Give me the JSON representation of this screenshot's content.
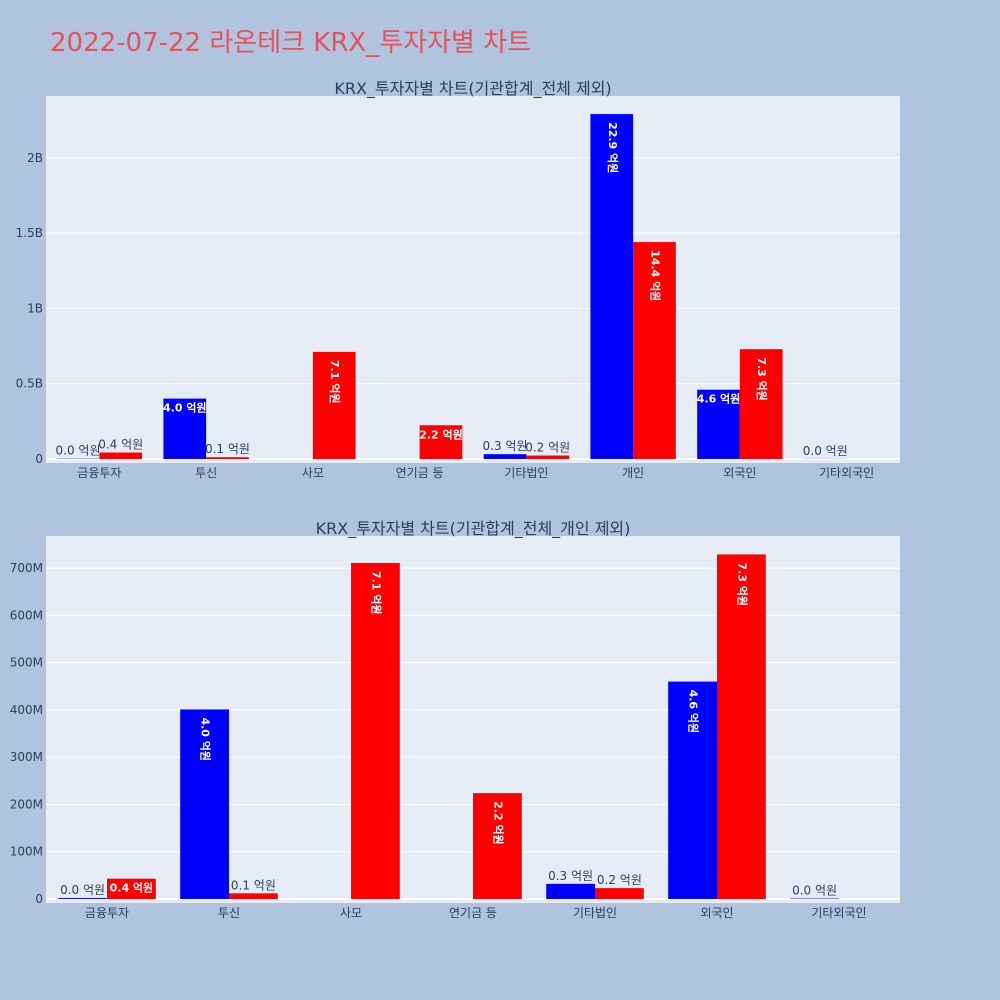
{
  "title": "2022-07-22 라온테크 KRX_투자자별 차트",
  "colors": {
    "buy": "#0000ff",
    "sell": "#ff0000",
    "plot_bg": "#e5ecf6",
    "page_bg": "#b0c4de",
    "title": "#e8505b"
  },
  "chart_data": [
    {
      "type": "bar",
      "title": "KRX_투자자별 차트(기관합계_전체 제외)",
      "categories": [
        "금융투자",
        "투신",
        "사모",
        "연기금 등",
        "기타법인",
        "개인",
        "외국인",
        "기타외국인"
      ],
      "series": [
        {
          "values": [
            2000000,
            401000000,
            null,
            null,
            32000000,
            2290000000,
            460000000,
            1000000
          ],
          "labels": [
            "0.0 억원",
            "4.0 억원",
            "",
            "",
            "0.3 억원",
            "22.9 억원",
            "4.6 억원",
            "0.0 억원"
          ]
        },
        {
          "values": [
            43000000,
            12000000,
            711000000,
            224000000,
            23000000,
            1440000000,
            729000000,
            null
          ],
          "labels": [
            "0.4 억원",
            "0.1 억원",
            "7.1 억원",
            "2.2 억원",
            "0.2 억원",
            "14.4 억원",
            "7.3 억원",
            ""
          ]
        }
      ],
      "yticks": [
        {
          "value": 0,
          "label": "0"
        },
        {
          "value": 500000000,
          "label": "0.5B"
        },
        {
          "value": 1000000000,
          "label": "1B"
        },
        {
          "value": 1500000000,
          "label": "1.5B"
        },
        {
          "value": 2000000000,
          "label": "2B"
        }
      ],
      "ylim": [
        0,
        2410000000
      ],
      "grid": true
    },
    {
      "type": "bar",
      "title": "KRX_투자자별 차트(기관합계_전체_개인 제외)",
      "categories": [
        "금융투자",
        "투신",
        "사모",
        "연기금 등",
        "기타법인",
        "외국인",
        "기타외국인"
      ],
      "series": [
        {
          "values": [
            2000000,
            401000000,
            null,
            null,
            32000000,
            460000000,
            1000000
          ],
          "labels": [
            "0.0 억원",
            "4.0 억원",
            "",
            "",
            "0.3 억원",
            "4.6 억원",
            "0.0 억원"
          ]
        },
        {
          "values": [
            43000000,
            12000000,
            711000000,
            224000000,
            23000000,
            729000000,
            null
          ],
          "labels": [
            "0.4 억원",
            "0.1 억원",
            "7.1 억원",
            "2.2 억원",
            "0.2 억원",
            "7.3 억원",
            ""
          ]
        }
      ],
      "yticks": [
        {
          "value": 0,
          "label": "0"
        },
        {
          "value": 100000000,
          "label": "100M"
        },
        {
          "value": 200000000,
          "label": "200M"
        },
        {
          "value": 300000000,
          "label": "300M"
        },
        {
          "value": 400000000,
          "label": "400M"
        },
        {
          "value": 500000000,
          "label": "500M"
        },
        {
          "value": 600000000,
          "label": "600M"
        },
        {
          "value": 700000000,
          "label": "700M"
        }
      ],
      "ylim": [
        0,
        768000000
      ],
      "grid": true
    }
  ]
}
